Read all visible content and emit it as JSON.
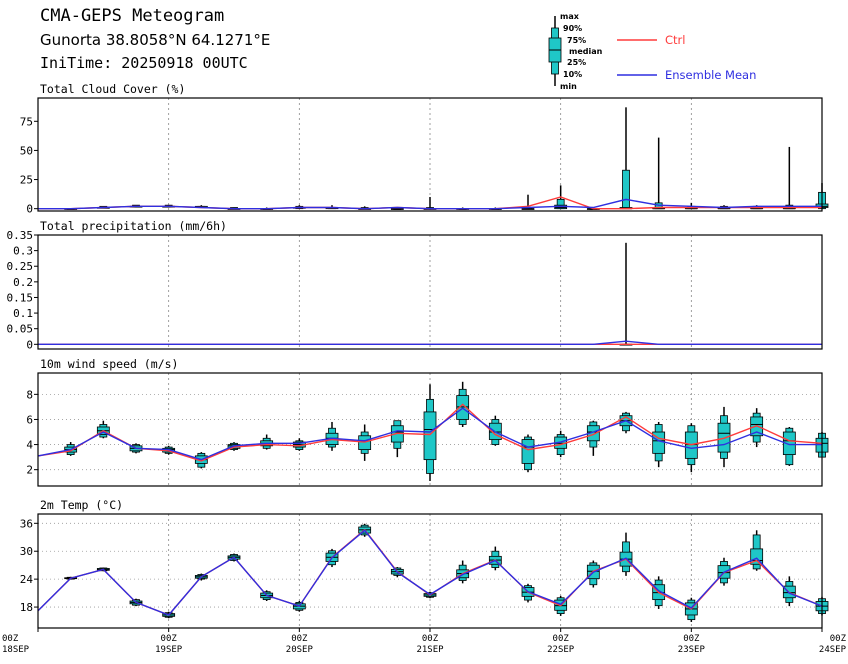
{
  "header": {
    "title": "CMA-GEPS Meteogram",
    "location": "Gunorta 38.8058°N 64.1271°E",
    "init": "IniTime: 20250918 00UTC"
  },
  "legend": {
    "box_labels": [
      "max",
      "90%",
      "75%",
      "median",
      "25%",
      "10%",
      "min"
    ],
    "ctrl_label": "Ctrl",
    "mean_label": "Ensemble Mean",
    "ctrl_color": "#ff3b3b",
    "mean_color": "#2f2fe0",
    "box_color": "#1fc7c7"
  },
  "xaxis": {
    "ticks": [
      {
        "h": 0,
        "top": "00Z",
        "bottom": "18SEP"
      },
      {
        "h": 24,
        "top": "00Z",
        "bottom": "19SEP"
      },
      {
        "h": 48,
        "top": "00Z",
        "bottom": "20SEP"
      },
      {
        "h": 72,
        "top": "00Z",
        "bottom": "21SEP"
      },
      {
        "h": 96,
        "top": "00Z",
        "bottom": "22SEP"
      },
      {
        "h": 120,
        "top": "00Z",
        "bottom": "23SEP"
      },
      {
        "h": 144,
        "top": "00Z",
        "bottom": "24SEP"
      }
    ],
    "range_hours": [
      0,
      144
    ],
    "step_hours": 6
  },
  "chart_data": [
    {
      "type": "box",
      "title": "Total Cloud Cover (%)",
      "ylim": [
        -2,
        95
      ],
      "yticks": [
        0,
        25,
        50,
        75
      ],
      "ytick_labels": [
        "0",
        "25",
        "50",
        "75"
      ],
      "grid": "dotted vertical at 00Z",
      "ctrl": [
        0,
        0,
        1,
        2,
        2,
        1,
        0,
        0,
        1,
        1,
        0,
        1,
        0,
        0,
        0,
        2,
        10,
        0,
        0,
        1,
        1,
        1,
        1,
        1,
        1
      ],
      "mean": [
        0,
        0,
        1,
        2,
        2,
        1,
        0,
        0,
        1,
        1,
        0,
        1,
        0,
        0,
        0,
        1,
        2,
        1,
        8,
        3,
        2,
        1,
        2,
        2,
        2
      ],
      "boxes": [
        null,
        [
          0,
          0,
          0,
          0,
          0,
          0,
          0
        ],
        [
          1,
          1,
          1,
          1,
          1,
          2,
          2
        ],
        [
          2,
          2,
          2,
          2,
          2,
          3,
          3
        ],
        [
          2,
          2,
          2,
          2,
          2,
          3,
          3
        ],
        [
          1,
          1,
          1,
          1,
          2,
          2,
          3
        ],
        [
          0,
          0,
          0,
          0,
          0,
          1,
          1
        ],
        [
          0,
          0,
          0,
          0,
          0,
          0,
          1
        ],
        [
          0,
          0,
          1,
          1,
          1,
          2,
          3
        ],
        [
          0,
          0,
          0,
          1,
          1,
          1,
          3
        ],
        [
          0,
          0,
          0,
          0,
          0,
          1,
          2
        ],
        [
          0,
          0,
          0,
          0,
          0,
          0,
          1
        ],
        [
          0,
          0,
          0,
          0,
          0,
          1,
          10
        ],
        [
          0,
          0,
          0,
          0,
          0,
          0,
          1
        ],
        [
          0,
          0,
          0,
          0,
          0,
          0,
          1
        ],
        [
          0,
          0,
          0,
          0,
          0,
          1,
          12
        ],
        [
          0,
          0,
          0,
          1,
          3,
          8,
          20
        ],
        [
          0,
          0,
          0,
          0,
          0,
          0,
          1
        ],
        [
          0,
          0,
          0,
          0,
          1,
          33,
          87
        ],
        [
          0,
          0,
          0,
          0,
          1,
          5,
          61
        ],
        [
          0,
          0,
          0,
          0,
          1,
          2,
          5
        ],
        [
          0,
          0,
          0,
          0,
          1,
          2,
          3
        ],
        [
          0,
          0,
          0,
          0,
          1,
          2,
          3
        ],
        [
          0,
          0,
          0,
          0,
          1,
          3,
          53
        ],
        [
          0,
          0,
          1,
          2,
          4,
          14,
          22
        ],
        [
          0,
          0,
          1,
          2,
          3,
          6,
          8
        ]
      ]
    },
    {
      "type": "box",
      "title": "Total precipitation (mm/6h)",
      "ylim": [
        -0.015,
        0.35
      ],
      "yticks": [
        0,
        0.05,
        0.1,
        0.15,
        0.2,
        0.25,
        0.3,
        0.35
      ],
      "ytick_labels": [
        "0",
        "0.05",
        "0.1",
        "0.15",
        "0.2",
        "0.25",
        "0.3",
        "0.35"
      ],
      "grid": "dotted vertical at 00Z",
      "ctrl": [
        0,
        0,
        0,
        0,
        0,
        0,
        0,
        0,
        0,
        0,
        0,
        0,
        0,
        0,
        0,
        0,
        0,
        0,
        0,
        0,
        0,
        0,
        0,
        0,
        0
      ],
      "mean": [
        0,
        0,
        0,
        0,
        0,
        0,
        0,
        0,
        0,
        0,
        0,
        0,
        0,
        0,
        0,
        0,
        0,
        0,
        0.01,
        0,
        0,
        0,
        0,
        0,
        0
      ],
      "boxes": [
        null,
        null,
        null,
        null,
        null,
        null,
        null,
        null,
        null,
        null,
        null,
        null,
        null,
        null,
        null,
        null,
        null,
        null,
        [
          0,
          0,
          0,
          0,
          0,
          0,
          0.325
        ],
        null,
        null,
        null,
        null,
        null,
        null
      ]
    },
    {
      "type": "box",
      "title": "10m wind speed (m/s)",
      "ylim": [
        0.7,
        9.7
      ],
      "yticks": [
        2,
        4,
        6,
        8
      ],
      "ytick_labels": [
        "2",
        "4",
        "6",
        "8"
      ],
      "grid": "dotted vertical at 00Z, dotted horizontal",
      "ctrl": [
        3.1,
        3.5,
        5.1,
        3.7,
        3.5,
        2.7,
        3.8,
        4.0,
        3.9,
        4.4,
        4.2,
        4.9,
        4.8,
        7.2,
        4.8,
        3.6,
        4.0,
        4.8,
        6.2,
        4.5,
        4.0,
        4.5,
        5.5,
        4.3,
        4.1
      ],
      "mean": [
        3.1,
        3.6,
        5.0,
        3.7,
        3.6,
        2.8,
        3.9,
        4.1,
        4.1,
        4.5,
        4.3,
        5.1,
        5.0,
        6.9,
        5.0,
        3.8,
        4.2,
        5.0,
        5.9,
        4.3,
        3.7,
        4.0,
        5.0,
        4.0,
        4.0
      ],
      "boxes": [
        null,
        [
          3.1,
          3.2,
          3.4,
          3.6,
          3.8,
          4.0,
          4.2
        ],
        [
          4.5,
          4.6,
          4.8,
          5.1,
          5.4,
          5.6,
          5.9
        ],
        [
          3.3,
          3.4,
          3.5,
          3.7,
          3.9,
          4.0,
          4.1
        ],
        [
          3.2,
          3.3,
          3.4,
          3.6,
          3.7,
          3.8,
          3.9
        ],
        [
          2.1,
          2.2,
          2.5,
          2.8,
          3.1,
          3.3,
          3.4
        ],
        [
          3.5,
          3.6,
          3.7,
          3.9,
          4.0,
          4.1,
          4.2
        ],
        [
          3.6,
          3.7,
          3.9,
          4.1,
          4.3,
          4.5,
          4.8
        ],
        [
          3.5,
          3.6,
          3.8,
          4.0,
          4.2,
          4.3,
          4.5
        ],
        [
          3.5,
          3.8,
          4.0,
          4.5,
          4.9,
          5.3,
          5.8
        ],
        [
          2.7,
          3.3,
          3.6,
          4.3,
          4.7,
          5.0,
          5.6
        ],
        [
          3.0,
          3.7,
          4.2,
          5.0,
          5.5,
          5.9,
          5.9
        ],
        [
          1.1,
          1.7,
          2.8,
          5.2,
          6.6,
          7.6,
          8.8
        ],
        [
          5.4,
          5.6,
          6.0,
          7.0,
          7.9,
          8.4,
          9.0
        ],
        [
          3.9,
          4.0,
          4.4,
          5.0,
          5.7,
          6.0,
          6.3
        ],
        [
          1.8,
          2.0,
          2.5,
          3.8,
          4.4,
          4.6,
          4.8
        ],
        [
          3.0,
          3.2,
          3.7,
          4.1,
          4.6,
          4.8,
          5.1
        ],
        [
          3.1,
          3.8,
          4.3,
          5.0,
          5.5,
          5.8,
          5.9
        ],
        [
          4.9,
          5.1,
          5.5,
          5.9,
          6.3,
          6.5,
          6.6
        ],
        [
          2.2,
          2.7,
          3.3,
          4.3,
          5.0,
          5.6,
          5.8
        ],
        [
          1.8,
          2.4,
          2.9,
          4.0,
          5.0,
          5.5,
          5.7
        ],
        [
          2.2,
          2.9,
          3.4,
          4.9,
          5.7,
          6.3,
          7.0
        ],
        [
          3.8,
          4.2,
          4.7,
          5.6,
          6.2,
          6.5,
          6.9
        ],
        [
          2.3,
          2.4,
          3.2,
          4.3,
          5.0,
          5.3,
          5.4
        ],
        [
          3.0,
          3.0,
          3.4,
          4.1,
          4.5,
          4.9,
          5.0
        ]
      ]
    },
    {
      "type": "box",
      "title": "2m Temp (°C)",
      "ylim": [
        13.5,
        38
      ],
      "yticks": [
        18,
        24,
        30,
        36
      ],
      "ytick_labels": [
        "18",
        "24",
        "30",
        "36"
      ],
      "grid": "dotted vertical at 00Z, dotted horizontal",
      "ctrl": [
        17.2,
        24.2,
        26.1,
        19.0,
        16.3,
        24.5,
        28.7,
        20.5,
        18.2,
        28.7,
        34.6,
        25.6,
        20.6,
        25.2,
        28.1,
        21.2,
        18.3,
        25.7,
        28.3,
        21.1,
        17.6,
        25.4,
        28.0,
        21.1,
        18.2
      ],
      "mean": [
        17.2,
        24.2,
        26.1,
        19.0,
        16.3,
        24.5,
        28.7,
        20.5,
        18.2,
        28.6,
        34.5,
        25.5,
        20.7,
        25.0,
        28.0,
        21.3,
        18.6,
        25.5,
        28.5,
        21.5,
        17.8,
        25.5,
        28.5,
        21.0,
        18.2
      ],
      "boxes": [
        null,
        [
          23.9,
          24.0,
          24.1,
          24.2,
          24.3,
          24.4,
          24.5
        ],
        [
          25.7,
          25.8,
          25.9,
          26.1,
          26.3,
          26.4,
          26.5
        ],
        [
          18.2,
          18.4,
          18.7,
          19.0,
          19.3,
          19.6,
          19.8
        ],
        [
          15.6,
          15.8,
          16.0,
          16.3,
          16.6,
          16.8,
          17.0
        ],
        [
          23.7,
          24.0,
          24.2,
          24.5,
          24.8,
          25.0,
          25.2
        ],
        [
          27.8,
          28.0,
          28.3,
          28.7,
          29.0,
          29.3,
          29.5
        ],
        [
          19.3,
          19.6,
          20.0,
          20.5,
          21.0,
          21.3,
          21.6
        ],
        [
          17.0,
          17.3,
          17.6,
          18.2,
          18.7,
          19.0,
          19.3
        ],
        [
          26.6,
          27.1,
          27.8,
          28.7,
          29.6,
          30.1,
          30.5
        ],
        [
          33.1,
          33.5,
          33.9,
          34.6,
          35.2,
          35.6,
          35.9
        ],
        [
          24.4,
          24.8,
          25.1,
          25.6,
          26.1,
          26.4,
          26.6
        ],
        [
          19.9,
          20.1,
          20.3,
          20.6,
          20.9,
          21.1,
          21.3
        ],
        [
          23.1,
          23.7,
          24.3,
          25.2,
          26.0,
          27.0,
          28.0
        ],
        [
          25.9,
          26.5,
          27.2,
          28.1,
          28.9,
          30.0,
          31.0
        ],
        [
          19.0,
          19.5,
          20.3,
          21.2,
          22.2,
          22.6,
          23.0
        ],
        [
          16.1,
          16.6,
          17.3,
          18.3,
          19.5,
          20.0,
          20.4
        ],
        [
          22.2,
          22.8,
          24.1,
          25.7,
          27.0,
          27.5,
          28.0
        ],
        [
          24.7,
          25.6,
          26.8,
          28.3,
          29.8,
          32.0,
          34.0
        ],
        [
          17.6,
          18.3,
          19.6,
          21.1,
          22.8,
          23.8,
          24.6
        ],
        [
          14.8,
          15.3,
          16.3,
          17.6,
          18.9,
          19.5,
          20.0
        ],
        [
          22.6,
          23.2,
          24.2,
          25.4,
          26.9,
          27.8,
          28.6
        ],
        [
          25.8,
          26.2,
          27.2,
          28.0,
          30.5,
          33.5,
          34.5
        ],
        [
          18.2,
          19.0,
          20.0,
          21.1,
          22.5,
          23.5,
          24.6
        ],
        [
          16.2,
          16.6,
          17.2,
          18.2,
          19.2,
          19.8,
          20.2
        ]
      ]
    }
  ]
}
